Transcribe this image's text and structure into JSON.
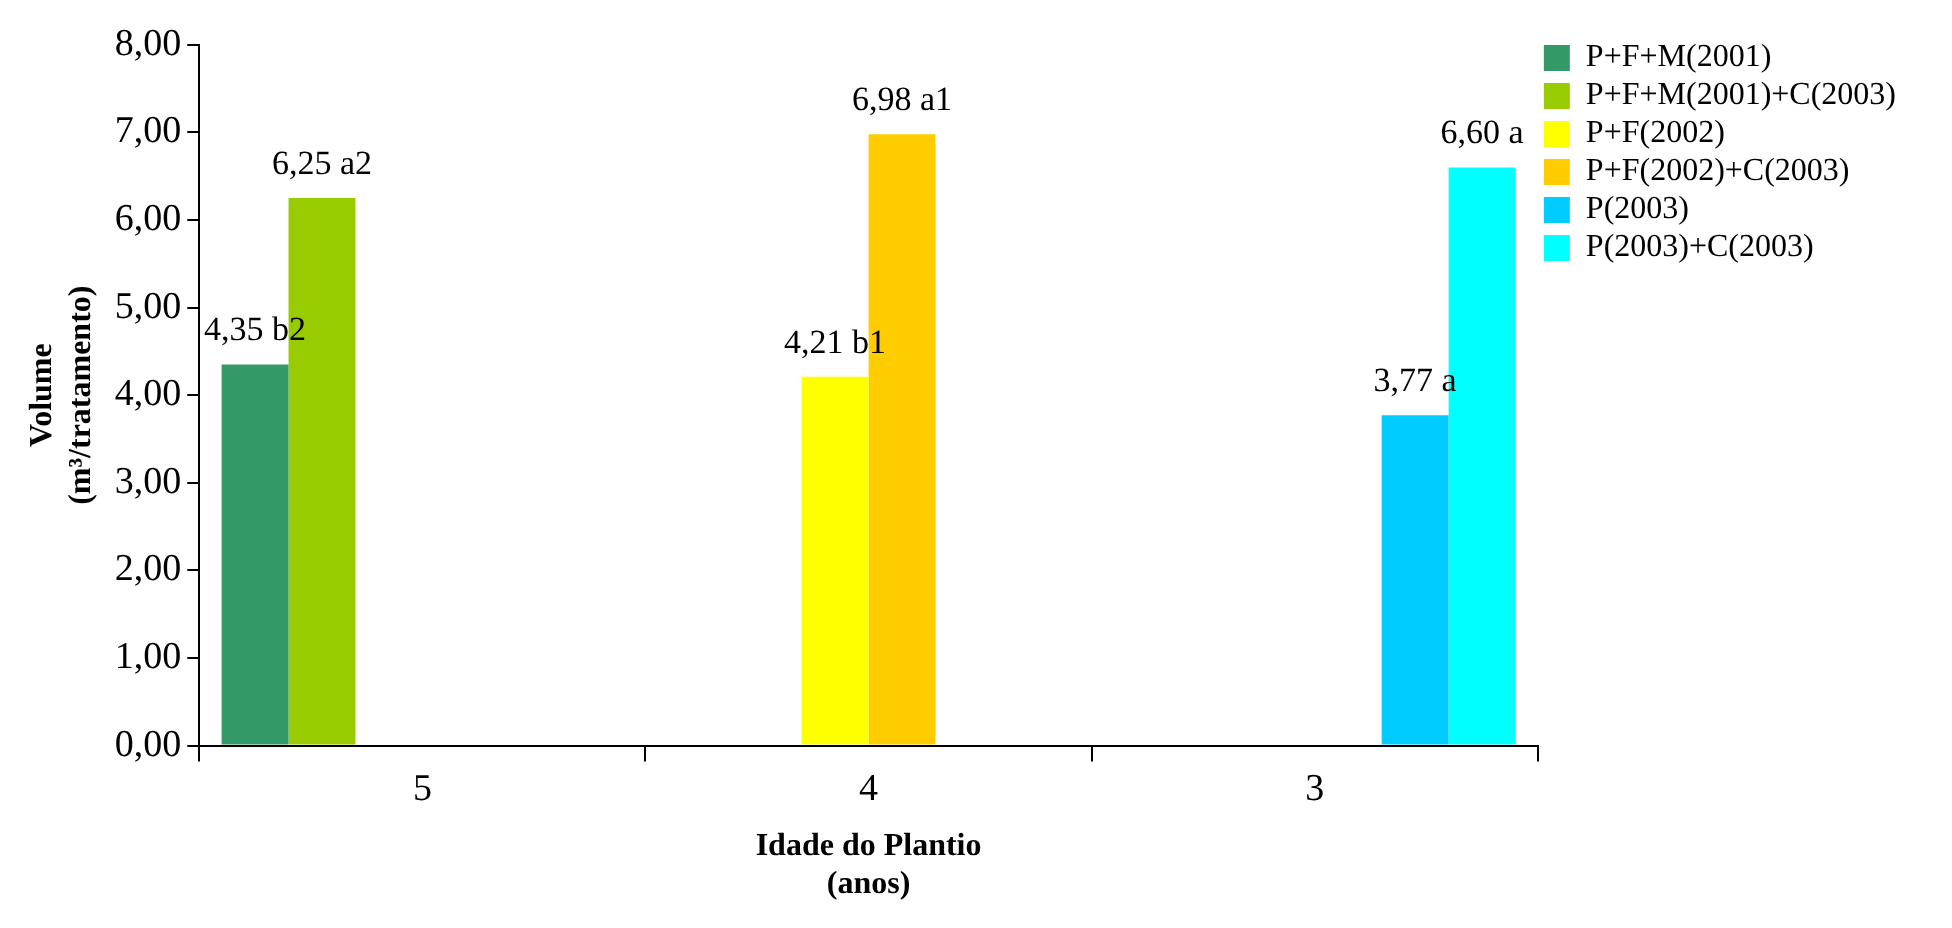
{
  "chart_data": {
    "type": "bar",
    "xlabel": "Idade do Plantio\n(anos)",
    "ylabel": "Volume\n(m³/tratamento)",
    "categories": [
      "5",
      "4",
      "3"
    ],
    "series": [
      {
        "name": "P+F+M(2001)",
        "color": "#339966",
        "values": [
          4.35,
          null,
          null
        ],
        "value_labels": [
          "4,35 b2",
          null,
          null
        ]
      },
      {
        "name": "P+F+M(2001)+C(2003)",
        "color": "#99cc00",
        "values": [
          6.25,
          null,
          null
        ],
        "value_labels": [
          "6,25 a2",
          null,
          null
        ]
      },
      {
        "name": "P+F(2002)",
        "color": "#ffff00",
        "values": [
          null,
          4.21,
          null
        ],
        "value_labels": [
          null,
          "4,21 b1",
          null
        ]
      },
      {
        "name": "P+F(2002)+C(2003)",
        "color": "#ffcc00",
        "values": [
          null,
          6.98,
          null
        ],
        "value_labels": [
          null,
          "6,98 a1",
          null
        ]
      },
      {
        "name": "P(2003)",
        "color": "#00ccff",
        "values": [
          null,
          null,
          3.77
        ],
        "value_labels": [
          null,
          null,
          "3,77 a"
        ]
      },
      {
        "name": "P(2003)+C(2003)",
        "color": "#00ffff",
        "values": [
          null,
          null,
          6.6
        ],
        "value_labels": [
          null,
          null,
          "6,60 a"
        ]
      }
    ],
    "ylim": [
      0,
      8
    ],
    "yticks": [
      {
        "value": 0,
        "label": "0,00"
      },
      {
        "value": 1,
        "label": "1,00"
      },
      {
        "value": 2,
        "label": "2,00"
      },
      {
        "value": 3,
        "label": "3,00"
      },
      {
        "value": 4,
        "label": "4,00"
      },
      {
        "value": 5,
        "label": "5,00"
      },
      {
        "value": 6,
        "label": "6,00"
      },
      {
        "value": 7,
        "label": "7,00"
      },
      {
        "value": 8,
        "label": "8,00"
      }
    ],
    "grid": false,
    "legend": "top right"
  }
}
